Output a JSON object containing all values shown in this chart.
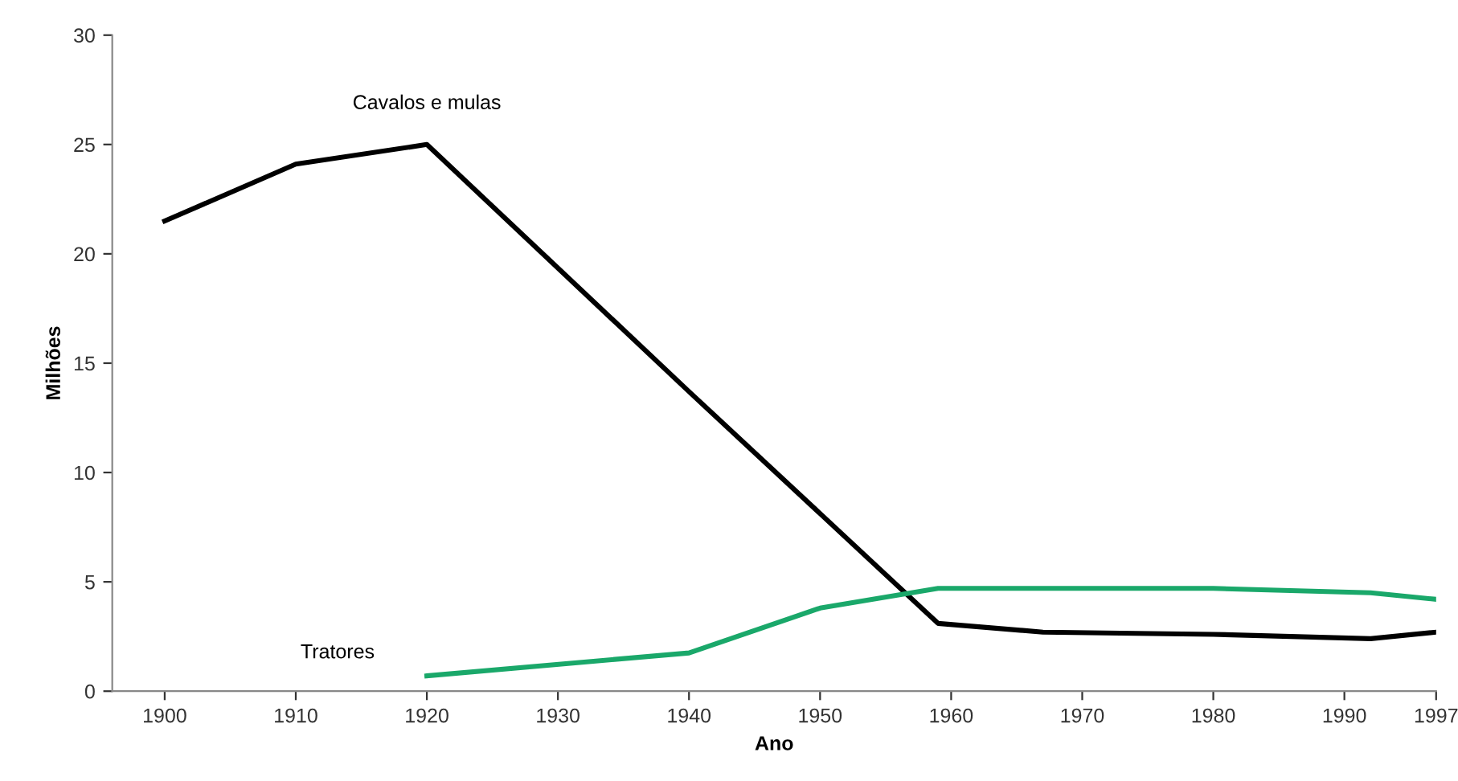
{
  "chart_data": {
    "type": "line",
    "xlabel": "Ano",
    "ylabel": "Milhões",
    "series": [
      {
        "name": "Cavalos e mulas",
        "color": "#000000",
        "x": [
          1900,
          1910,
          1920,
          1940,
          1959,
          1967,
          1980,
          1992,
          1997
        ],
        "values": [
          21.5,
          24.1,
          25,
          13.7,
          3.1,
          2.7,
          2.6,
          2.4,
          2.7
        ]
      },
      {
        "name": "Tratores",
        "color": "#1aa86a",
        "x": [
          1920,
          1940,
          1950,
          1959,
          1980,
          1992,
          1997
        ],
        "values": [
          0.7,
          1.75,
          3.8,
          4.7,
          4.7,
          4.5,
          4.2
        ]
      }
    ],
    "xlim": [
      1896,
      1997
    ],
    "xticks": [
      1900,
      1910,
      1920,
      1930,
      1940,
      1950,
      1960,
      1970,
      1980,
      1990,
      1997
    ],
    "ylim": [
      0,
      30
    ],
    "yticks": [
      0,
      5,
      10,
      15,
      20,
      25,
      30
    ],
    "grid": false,
    "legend": false,
    "marker": "none",
    "line_style": "solid"
  }
}
